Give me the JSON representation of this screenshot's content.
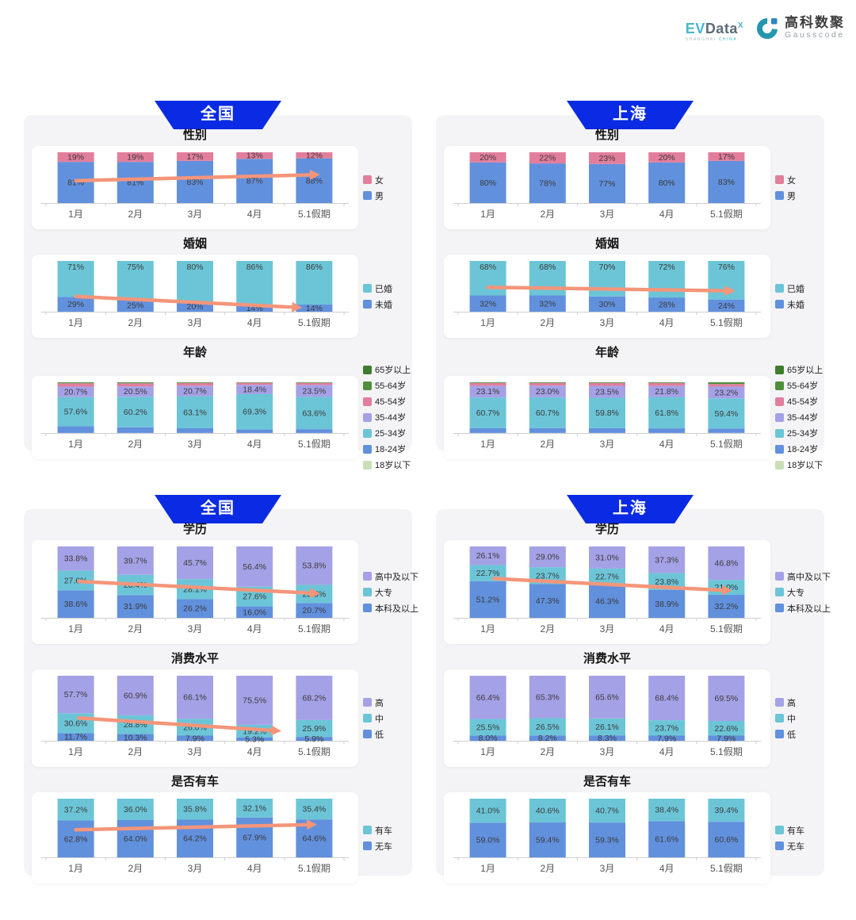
{
  "header": {
    "evdata": {
      "word_ev": "EV",
      "word_rest": "Data",
      "sup": "X",
      "sub_left": "SHANGHAI",
      "sub_right": "CHINA"
    },
    "gausscode": {
      "cn": "高科数聚",
      "en": "Gausscode"
    }
  },
  "palette": {
    "blue": "#6190dd",
    "pink": "#e27e9c",
    "cyan": "#6cc5d7",
    "purple": "#a5a1e6",
    "green_dark": "#3e7d2d",
    "green": "#4f8f3c",
    "green_light": "#c8dfb8",
    "arrow": "#f4957a",
    "banner": "#0a2ae4",
    "axis": "#cfcfcf",
    "label": "#3b3b3b",
    "month": "#555555"
  },
  "months": [
    "1月",
    "2月",
    "3月",
    "4月",
    "5.1假期"
  ],
  "sections": [
    {
      "panels": [
        {
          "banner": "全国",
          "chart_ids": [
            "cn-gender",
            "cn-marriage",
            "cn-age"
          ]
        },
        {
          "banner": "上海",
          "chart_ids": [
            "sh-gender",
            "sh-marriage",
            "sh-age"
          ]
        }
      ]
    },
    {
      "panels": [
        {
          "banner": "全国",
          "chart_ids": [
            "cn-edu",
            "cn-consume",
            "cn-car"
          ]
        },
        {
          "banner": "上海",
          "chart_ids": [
            "sh-edu",
            "sh-consume",
            "sh-car"
          ]
        }
      ]
    }
  ],
  "chart_data": [
    {
      "id": "cn-gender",
      "panel": "全国",
      "title": "性别",
      "type": "bar",
      "stacked": true,
      "categories": [
        "1月",
        "2月",
        "3月",
        "4月",
        "5.1假期"
      ],
      "label_decimals": 0,
      "ylim": [
        0,
        100
      ],
      "series": [
        {
          "name": "男",
          "color_key": "blue",
          "values": [
            81,
            81,
            83,
            87,
            88
          ],
          "show_labels": true,
          "label_pos": "center"
        },
        {
          "name": "女",
          "color_key": "pink",
          "values": [
            19,
            19,
            17,
            13,
            12
          ],
          "show_labels": true,
          "label_pos": "center"
        }
      ],
      "legend_order": [
        "女",
        "男"
      ],
      "arrow": {
        "x1": 0.1,
        "y1": 0.56,
        "x2": 0.92,
        "y2": 0.44
      }
    },
    {
      "id": "cn-marriage",
      "panel": "全国",
      "title": "婚姻",
      "type": "bar",
      "stacked": true,
      "categories": [
        "1月",
        "2月",
        "3月",
        "4月",
        "5.1假期"
      ],
      "label_decimals": 0,
      "ylim": [
        0,
        100
      ],
      "series": [
        {
          "name": "未婚",
          "color_key": "blue",
          "values": [
            29,
            25,
            20,
            14,
            14
          ],
          "show_labels": true,
          "label_pos": "center"
        },
        {
          "name": "已婚",
          "color_key": "cyan",
          "values": [
            71,
            75,
            80,
            86,
            86
          ],
          "show_labels": true,
          "label_pos": "top"
        }
      ],
      "legend_order": [
        "已婚",
        "未婚"
      ],
      "arrow": {
        "x1": 0.1,
        "y1": 0.7,
        "x2": 0.86,
        "y2": 0.92
      }
    },
    {
      "id": "cn-age",
      "panel": "全国",
      "title": "年龄",
      "type": "bar",
      "stacked": true,
      "categories": [
        "1月",
        "2月",
        "3月",
        "4月",
        "5.1假期"
      ],
      "label_decimals": 1,
      "ylim": [
        0,
        100
      ],
      "series": [
        {
          "name": "18岁以下",
          "color_key": "green_light",
          "values": [
            0.2,
            0.2,
            0.2,
            0.1,
            0.1
          ],
          "show_labels": false,
          "estimated": true
        },
        {
          "name": "18-24岁",
          "color_key": "blue",
          "values": [
            13.0,
            11.1,
            9.2,
            7.2,
            7.5
          ],
          "show_labels": false,
          "estimated": true
        },
        {
          "name": "25-34岁",
          "color_key": "cyan",
          "values": [
            57.6,
            60.2,
            63.1,
            69.3,
            63.6
          ],
          "show_labels": true,
          "label_pos": "center"
        },
        {
          "name": "35-44岁",
          "color_key": "purple",
          "values": [
            20.7,
            20.5,
            20.7,
            18.4,
            23.5
          ],
          "show_labels": true,
          "label_pos": "center"
        },
        {
          "name": "45-54岁",
          "color_key": "pink",
          "values": [
            6.5,
            6.0,
            5.3,
            4.0,
            4.0
          ],
          "show_labels": false,
          "estimated": true
        },
        {
          "name": "55-64岁",
          "color_key": "green",
          "values": [
            1.5,
            1.5,
            1.2,
            0.8,
            1.0
          ],
          "show_labels": false,
          "estimated": true
        },
        {
          "name": "65岁以上",
          "color_key": "green_dark",
          "values": [
            0.5,
            0.5,
            0.3,
            0.2,
            0.3
          ],
          "show_labels": false,
          "estimated": true
        }
      ],
      "legend_order": [
        "65岁以上",
        "55-64岁",
        "45-54岁",
        "35-44岁",
        "25-34岁",
        "18-24岁",
        "18岁以下"
      ],
      "arrow": null
    },
    {
      "id": "sh-gender",
      "panel": "上海",
      "title": "性别",
      "type": "bar",
      "stacked": true,
      "categories": [
        "1月",
        "2月",
        "3月",
        "4月",
        "5.1假期"
      ],
      "label_decimals": 0,
      "ylim": [
        0,
        100
      ],
      "series": [
        {
          "name": "男",
          "color_key": "blue",
          "values": [
            80,
            78,
            77,
            80,
            83
          ],
          "show_labels": true,
          "label_pos": "center"
        },
        {
          "name": "女",
          "color_key": "pink",
          "values": [
            20,
            22,
            23,
            20,
            17
          ],
          "show_labels": true,
          "label_pos": "center"
        }
      ],
      "legend_order": [
        "女",
        "男"
      ],
      "arrow": null
    },
    {
      "id": "sh-marriage",
      "panel": "上海",
      "title": "婚姻",
      "type": "bar",
      "stacked": true,
      "categories": [
        "1月",
        "2月",
        "3月",
        "4月",
        "5.1假期"
      ],
      "label_decimals": 0,
      "ylim": [
        0,
        100
      ],
      "series": [
        {
          "name": "未婚",
          "color_key": "blue",
          "values": [
            32,
            32,
            30,
            28,
            24
          ],
          "show_labels": true,
          "label_pos": "center"
        },
        {
          "name": "已婚",
          "color_key": "cyan",
          "values": [
            68,
            68,
            70,
            72,
            76
          ],
          "show_labels": true,
          "label_pos": "top"
        }
      ],
      "legend_order": [
        "已婚",
        "未婚"
      ],
      "arrow": {
        "x1": 0.1,
        "y1": 0.52,
        "x2": 0.93,
        "y2": 0.59
      }
    },
    {
      "id": "sh-age",
      "panel": "上海",
      "title": "年龄",
      "type": "bar",
      "stacked": true,
      "categories": [
        "1月",
        "2月",
        "3月",
        "4月",
        "5.1假期"
      ],
      "label_decimals": 1,
      "ylim": [
        0,
        100
      ],
      "series": [
        {
          "name": "18岁以下",
          "color_key": "green_light",
          "values": [
            0.2,
            0.2,
            0.2,
            0.2,
            0.3
          ],
          "show_labels": false,
          "estimated": true
        },
        {
          "name": "18-24岁",
          "color_key": "blue",
          "values": [
            9.2,
            9.6,
            9.5,
            9.0,
            8.6
          ],
          "show_labels": false,
          "estimated": true
        },
        {
          "name": "25-34岁",
          "color_key": "cyan",
          "values": [
            60.7,
            60.7,
            59.8,
            61.8,
            59.4
          ],
          "show_labels": true,
          "label_pos": "center"
        },
        {
          "name": "35-44岁",
          "color_key": "purple",
          "values": [
            23.1,
            23.0,
            23.5,
            21.8,
            23.2
          ],
          "show_labels": true,
          "label_pos": "center"
        },
        {
          "name": "45-54岁",
          "color_key": "pink",
          "values": [
            5.3,
            5.0,
            5.5,
            5.7,
            5.0
          ],
          "show_labels": false,
          "estimated": true
        },
        {
          "name": "55-64岁",
          "color_key": "green",
          "values": [
            1.2,
            1.2,
            1.2,
            1.2,
            2.8
          ],
          "show_labels": false,
          "estimated": true
        },
        {
          "name": "65岁以上",
          "color_key": "green_dark",
          "values": [
            0.3,
            0.3,
            0.3,
            0.3,
            0.7
          ],
          "show_labels": false,
          "estimated": true
        }
      ],
      "legend_order": [
        "65岁以上",
        "55-64岁",
        "45-54岁",
        "35-44岁",
        "25-34岁",
        "18-24岁",
        "18岁以下"
      ],
      "arrow": null
    },
    {
      "id": "cn-edu",
      "panel": "全国",
      "title": "学历",
      "type": "bar",
      "stacked": true,
      "categories": [
        "1月",
        "2月",
        "3月",
        "4月",
        "5.1假期"
      ],
      "label_decimals": 1,
      "ylim": [
        0,
        100
      ],
      "series": [
        {
          "name": "本科及以上",
          "color_key": "blue",
          "values": [
            38.6,
            31.9,
            26.2,
            16.0,
            20.7
          ],
          "show_labels": true,
          "label_pos": "center"
        },
        {
          "name": "大专",
          "color_key": "cyan",
          "values": [
            27.6,
            28.4,
            28.1,
            27.6,
            25.5
          ],
          "show_labels": true,
          "label_pos": "center"
        },
        {
          "name": "高中及以下",
          "color_key": "purple",
          "values": [
            33.8,
            39.7,
            45.7,
            56.4,
            53.8
          ],
          "show_labels": true,
          "label_pos": "center"
        }
      ],
      "legend_order": [
        "高中及以下",
        "大专",
        "本科及以上"
      ],
      "arrow": {
        "x1": 0.11,
        "y1": 0.49,
        "x2": 0.92,
        "y2": 0.66
      }
    },
    {
      "id": "cn-consume",
      "panel": "全国",
      "title": "消费水平",
      "type": "bar",
      "stacked": true,
      "categories": [
        "1月",
        "2月",
        "3月",
        "4月",
        "5.1假期"
      ],
      "label_decimals": 1,
      "ylim": [
        0,
        100
      ],
      "series": [
        {
          "name": "低",
          "color_key": "blue",
          "values": [
            11.7,
            10.3,
            7.9,
            5.3,
            5.9
          ],
          "show_labels": true,
          "label_pos": "center"
        },
        {
          "name": "中",
          "color_key": "cyan",
          "values": [
            30.6,
            28.8,
            26.0,
            19.2,
            25.9
          ],
          "show_labels": true,
          "label_pos": "center"
        },
        {
          "name": "高",
          "color_key": "purple",
          "values": [
            57.7,
            60.9,
            66.1,
            75.5,
            68.2
          ],
          "show_labels": true,
          "label_pos": "center"
        }
      ],
      "legend_order": [
        "高",
        "中",
        "低"
      ],
      "arrow": {
        "x1": 0.11,
        "y1": 0.65,
        "x2": 0.79,
        "y2": 0.85
      }
    },
    {
      "id": "cn-car",
      "panel": "全国",
      "title": "是否有车",
      "type": "bar",
      "stacked": true,
      "categories": [
        "1月",
        "2月",
        "3月",
        "4月",
        "5.1假期"
      ],
      "label_decimals": 1,
      "ylim": [
        0,
        100
      ],
      "series": [
        {
          "name": "无车",
          "color_key": "blue",
          "values": [
            62.8,
            64.0,
            64.2,
            67.9,
            64.6
          ],
          "show_labels": true,
          "label_pos": "center"
        },
        {
          "name": "有车",
          "color_key": "cyan",
          "values": [
            37.2,
            36.0,
            35.8,
            32.1,
            35.4
          ],
          "show_labels": true,
          "label_pos": "center"
        }
      ],
      "legend_order": [
        "有车",
        "无车"
      ],
      "arrow": {
        "x1": 0.1,
        "y1": 0.53,
        "x2": 0.91,
        "y2": 0.44
      }
    },
    {
      "id": "sh-edu",
      "panel": "上海",
      "title": "学历",
      "type": "bar",
      "stacked": true,
      "categories": [
        "1月",
        "2月",
        "3月",
        "4月",
        "5.1假期"
      ],
      "label_decimals": 1,
      "ylim": [
        0,
        100
      ],
      "series": [
        {
          "name": "本科及以上",
          "color_key": "blue",
          "values": [
            51.2,
            47.3,
            46.3,
            38.9,
            32.2
          ],
          "show_labels": true,
          "label_pos": "center"
        },
        {
          "name": "大专",
          "color_key": "cyan",
          "values": [
            22.7,
            23.7,
            22.7,
            23.8,
            21.0
          ],
          "show_labels": true,
          "label_pos": "center"
        },
        {
          "name": "高中及以下",
          "color_key": "purple",
          "values": [
            26.1,
            29.0,
            31.0,
            37.3,
            46.8
          ],
          "show_labels": true,
          "label_pos": "center"
        }
      ],
      "legend_order": [
        "高中及以下",
        "大专",
        "本科及以上"
      ],
      "arrow": {
        "x1": 0.12,
        "y1": 0.45,
        "x2": 0.92,
        "y2": 0.62
      }
    },
    {
      "id": "sh-consume",
      "panel": "上海",
      "title": "消费水平",
      "type": "bar",
      "stacked": true,
      "categories": [
        "1月",
        "2月",
        "3月",
        "4月",
        "5.1假期"
      ],
      "label_decimals": 1,
      "ylim": [
        0,
        100
      ],
      "series": [
        {
          "name": "低",
          "color_key": "blue",
          "values": [
            8.0,
            8.2,
            8.3,
            7.9,
            7.9
          ],
          "show_labels": true,
          "label_pos": "center"
        },
        {
          "name": "中",
          "color_key": "cyan",
          "values": [
            25.5,
            26.5,
            26.1,
            23.7,
            22.6
          ],
          "show_labels": true,
          "label_pos": "center"
        },
        {
          "name": "高",
          "color_key": "purple",
          "values": [
            66.4,
            65.3,
            65.6,
            68.4,
            69.5
          ],
          "show_labels": true,
          "label_pos": "center"
        }
      ],
      "legend_order": [
        "高",
        "中",
        "低"
      ],
      "arrow": null
    },
    {
      "id": "sh-car",
      "panel": "上海",
      "title": "是否有车",
      "type": "bar",
      "stacked": true,
      "categories": [
        "1月",
        "2月",
        "3月",
        "4月",
        "5.1假期"
      ],
      "label_decimals": 1,
      "ylim": [
        0,
        100
      ],
      "series": [
        {
          "name": "无车",
          "color_key": "blue",
          "values": [
            59.0,
            59.4,
            59.3,
            61.6,
            60.6
          ],
          "show_labels": true,
          "label_pos": "center"
        },
        {
          "name": "有车",
          "color_key": "cyan",
          "values": [
            41.0,
            40.6,
            40.7,
            38.4,
            39.4
          ],
          "show_labels": true,
          "label_pos": "center"
        }
      ],
      "legend_order": [
        "有车",
        "无车"
      ],
      "arrow": null
    }
  ]
}
